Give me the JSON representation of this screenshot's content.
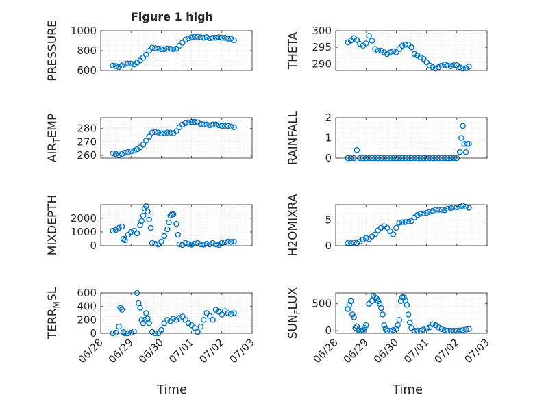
{
  "figure": {
    "title": "Figure 1 high",
    "marker_color": "#0072BD"
  },
  "x_axis": {
    "label": "Time",
    "range": [
      "06/28",
      "07/03"
    ],
    "tick_labels": [
      "06/28",
      "06/29",
      "06/30",
      "07/01",
      "07/02",
      "07/03"
    ]
  },
  "chart_data": [
    {
      "type": "scatter",
      "ylabel": "PRESSURE",
      "ylim": [
        600,
        1000
      ],
      "yticks": [
        600,
        800,
        1000
      ],
      "ytick_labels": [
        "600",
        "800",
        "1000"
      ],
      "grid": true,
      "x": [
        0.4,
        0.5,
        0.6,
        0.7,
        0.8,
        0.9,
        1.0,
        1.1,
        1.2,
        1.3,
        1.4,
        1.5,
        1.6,
        1.7,
        1.8,
        1.9,
        2.0,
        2.1,
        2.2,
        2.3,
        2.4,
        2.5,
        2.6,
        2.7,
        2.8,
        2.9,
        3.0,
        3.1,
        3.2,
        3.3,
        3.4,
        3.5,
        3.6,
        3.7,
        3.8,
        3.9,
        4.0,
        4.1,
        4.2,
        4.3,
        4.4
      ],
      "y": [
        650,
        645,
        635,
        650,
        665,
        670,
        670,
        660,
        680,
        700,
        730,
        760,
        800,
        830,
        825,
        820,
        815,
        815,
        820,
        820,
        815,
        820,
        850,
        880,
        910,
        925,
        935,
        940,
        940,
        935,
        930,
        935,
        925,
        930,
        930,
        935,
        930,
        930,
        920,
        920,
        905
      ]
    },
    {
      "type": "scatter",
      "ylabel": "THETA",
      "ylim": [
        288,
        300
      ],
      "yticks": [
        290,
        295,
        300
      ],
      "ytick_labels": [
        "290",
        "295",
        "300"
      ],
      "grid": true,
      "x": [
        0.4,
        0.5,
        0.6,
        0.7,
        0.8,
        0.9,
        1.0,
        1.1,
        1.2,
        1.3,
        1.4,
        1.5,
        1.6,
        1.7,
        1.8,
        1.9,
        2.0,
        2.1,
        2.2,
        2.3,
        2.4,
        2.5,
        2.6,
        2.7,
        2.8,
        2.9,
        3.0,
        3.1,
        3.2,
        3.3,
        3.4,
        3.5,
        3.6,
        3.7,
        3.8,
        3.9,
        4.0,
        4.1,
        4.2,
        4.3,
        4.4
      ],
      "y": [
        296.5,
        297.0,
        297.8,
        297.2,
        296.0,
        295.5,
        296.2,
        298.5,
        297.0,
        294.5,
        294.0,
        294.0,
        293.5,
        293.0,
        293.5,
        293.8,
        293.5,
        294.5,
        295.5,
        295.8,
        295.8,
        295.0,
        293.0,
        292.5,
        292.0,
        291.5,
        290.5,
        289.5,
        289.0,
        288.6,
        289.0,
        289.5,
        289.8,
        289.5,
        289.3,
        289.6,
        289.6,
        289.0,
        288.6,
        288.7,
        289.2
      ]
    },
    {
      "type": "scatter",
      "ylabel": "AIR_TEMP",
      "ylim": [
        258,
        288
      ],
      "yticks": [
        260,
        270,
        280
      ],
      "ytick_labels": [
        "260",
        "270",
        "280"
      ],
      "grid": true,
      "x": [
        0.4,
        0.5,
        0.6,
        0.7,
        0.8,
        0.9,
        1.0,
        1.1,
        1.2,
        1.3,
        1.4,
        1.5,
        1.6,
        1.7,
        1.8,
        1.9,
        2.0,
        2.1,
        2.2,
        2.3,
        2.4,
        2.5,
        2.6,
        2.7,
        2.8,
        2.9,
        3.0,
        3.1,
        3.2,
        3.3,
        3.4,
        3.5,
        3.6,
        3.7,
        3.8,
        3.9,
        4.0,
        4.1,
        4.2,
        4.3,
        4.4
      ],
      "y": [
        261.5,
        261.0,
        260.0,
        261.0,
        262.0,
        262.5,
        263.0,
        263.5,
        264.5,
        266.0,
        268.0,
        271.0,
        274.0,
        277.0,
        277.5,
        277.0,
        276.5,
        276.5,
        277.0,
        277.0,
        276.5,
        278.0,
        281.0,
        283.0,
        284.0,
        284.5,
        285.0,
        285.0,
        284.5,
        283.5,
        283.0,
        283.0,
        282.5,
        283.0,
        283.0,
        282.5,
        282.0,
        282.0,
        282.0,
        281.5,
        281.0
      ]
    },
    {
      "type": "scatter",
      "ylabel": "RAINFALL",
      "ylim": [
        0,
        2
      ],
      "yticks": [
        0,
        1,
        2
      ],
      "ytick_labels": [
        "0",
        "1",
        "2"
      ],
      "grid": true,
      "x": [
        0.4,
        0.5,
        0.6,
        0.7,
        0.8,
        0.9,
        1.0,
        1.1,
        1.2,
        1.3,
        1.4,
        1.5,
        1.6,
        1.7,
        1.8,
        1.9,
        2.0,
        2.1,
        2.2,
        2.3,
        2.4,
        2.5,
        2.6,
        2.7,
        2.8,
        2.9,
        3.0,
        3.1,
        3.2,
        3.3,
        3.4,
        3.5,
        3.6,
        3.7,
        3.8,
        3.9,
        4.0,
        4.1,
        4.15,
        4.2,
        4.25,
        4.3,
        4.35,
        4.4
      ],
      "y": [
        0,
        0,
        0,
        0.4,
        0,
        0,
        0,
        0,
        0,
        0,
        0,
        0,
        0,
        0,
        0,
        0,
        0,
        0,
        0,
        0,
        0,
        0,
        0,
        0,
        0,
        0,
        0,
        0,
        0,
        0,
        0,
        0,
        0,
        0,
        0,
        0,
        0,
        0.3,
        1.0,
        1.6,
        0.7,
        0.3,
        0.7,
        0.7
      ]
    },
    {
      "type": "scatter",
      "ylabel": "MIXDEPTH",
      "ylim": [
        0,
        3000
      ],
      "yticks": [
        0,
        1000,
        2000
      ],
      "ytick_labels": [
        "0",
        "1000",
        "2000"
      ],
      "grid": true,
      "x": [
        0.4,
        0.5,
        0.6,
        0.7,
        0.75,
        0.8,
        0.9,
        1.0,
        1.1,
        1.2,
        1.3,
        1.35,
        1.4,
        1.45,
        1.5,
        1.55,
        1.6,
        1.65,
        1.7,
        1.8,
        1.9,
        2.0,
        2.1,
        2.2,
        2.25,
        2.3,
        2.35,
        2.4,
        2.5,
        2.55,
        2.6,
        2.7,
        2.8,
        2.9,
        3.0,
        3.1,
        3.2,
        3.3,
        3.4,
        3.5,
        3.6,
        3.7,
        3.8,
        3.9,
        4.0,
        4.1,
        4.2,
        4.3,
        4.4
      ],
      "y": [
        1100,
        1150,
        1300,
        1400,
        500,
        400,
        800,
        1000,
        1100,
        900,
        1500,
        1800,
        2200,
        2700,
        2900,
        2500,
        1900,
        1300,
        200,
        150,
        100,
        300,
        700,
        1200,
        1700,
        2200,
        2300,
        2300,
        1600,
        800,
        100,
        50,
        200,
        120,
        80,
        150,
        200,
        100,
        80,
        150,
        100,
        200,
        100,
        50,
        200,
        250,
        300,
        280,
        300
      ]
    },
    {
      "type": "scatter",
      "ylabel": "H2OMIXRA",
      "ylim": [
        0,
        8
      ],
      "yticks": [
        0,
        5
      ],
      "ytick_labels": [
        "0",
        "5"
      ],
      "grid": true,
      "x": [
        0.4,
        0.5,
        0.6,
        0.7,
        0.8,
        0.9,
        1.0,
        1.1,
        1.2,
        1.3,
        1.4,
        1.5,
        1.6,
        1.7,
        1.8,
        1.9,
        2.0,
        2.1,
        2.2,
        2.3,
        2.4,
        2.5,
        2.6,
        2.7,
        2.8,
        2.9,
        3.0,
        3.1,
        3.2,
        3.3,
        3.4,
        3.5,
        3.6,
        3.7,
        3.8,
        3.9,
        4.0,
        4.1,
        4.2,
        4.3,
        4.4
      ],
      "y": [
        0.5,
        0.5,
        0.6,
        0.5,
        0.8,
        1.2,
        1.5,
        1.3,
        1.8,
        2.2,
        3.0,
        3.5,
        3.8,
        3.5,
        2.8,
        2.2,
        3.5,
        4.5,
        4.6,
        4.6,
        4.7,
        4.8,
        5.5,
        6.0,
        6.2,
        6.3,
        6.4,
        6.6,
        6.8,
        7.0,
        7.0,
        7.0,
        6.9,
        7.2,
        7.3,
        7.5,
        7.5,
        7.6,
        7.8,
        7.6,
        7.4
      ]
    },
    {
      "type": "scatter",
      "ylabel": "TERR_MSL",
      "ylim": [
        0,
        600
      ],
      "yticks": [
        0,
        200,
        400,
        600
      ],
      "ytick_labels": [
        "0",
        "200",
        "400",
        "600"
      ],
      "grid": true,
      "x": [
        0.4,
        0.5,
        0.6,
        0.65,
        0.7,
        0.75,
        0.8,
        0.9,
        1.0,
        1.1,
        1.2,
        1.25,
        1.3,
        1.35,
        1.4,
        1.45,
        1.5,
        1.55,
        1.6,
        1.7,
        1.8,
        1.9,
        2.0,
        2.1,
        2.2,
        2.3,
        2.4,
        2.5,
        2.6,
        2.7,
        2.8,
        2.9,
        3.0,
        3.1,
        3.2,
        3.3,
        3.4,
        3.5,
        3.6,
        3.7,
        3.8,
        3.9,
        4.0,
        4.1,
        4.2,
        4.3,
        4.4
      ],
      "y": [
        0,
        10,
        100,
        380,
        350,
        20,
        0,
        0,
        10,
        30,
        600,
        450,
        380,
        200,
        150,
        200,
        300,
        220,
        150,
        20,
        0,
        0,
        50,
        150,
        200,
        180,
        220,
        200,
        230,
        250,
        200,
        150,
        120,
        80,
        20,
        100,
        200,
        300,
        260,
        200,
        350,
        320,
        280,
        330,
        300,
        290,
        300
      ]
    },
    {
      "type": "scatter",
      "ylabel": "SUN_FLUX",
      "ylim": [
        -50,
        700
      ],
      "yticks": [
        0,
        500
      ],
      "ytick_labels": [
        "0",
        "500"
      ],
      "grid": true,
      "x": [
        0.4,
        0.45,
        0.5,
        0.55,
        0.6,
        0.65,
        0.7,
        0.75,
        0.8,
        0.85,
        0.9,
        0.95,
        1.0,
        1.1,
        1.2,
        1.25,
        1.3,
        1.35,
        1.4,
        1.45,
        1.5,
        1.55,
        1.6,
        1.65,
        1.7,
        1.8,
        1.9,
        2.0,
        2.05,
        2.1,
        2.15,
        2.2,
        2.25,
        2.3,
        2.35,
        2.4,
        2.45,
        2.5,
        2.6,
        2.7,
        2.8,
        2.9,
        3.0,
        3.1,
        3.2,
        3.3,
        3.4,
        3.5,
        3.6,
        3.7,
        3.8,
        3.9,
        4.0,
        4.1,
        4.2,
        4.3,
        4.4
      ],
      "y": [
        400,
        480,
        550,
        300,
        250,
        50,
        80,
        10,
        0,
        0,
        10,
        50,
        100,
        500,
        550,
        650,
        620,
        600,
        550,
        500,
        420,
        300,
        100,
        30,
        0,
        0,
        10,
        30,
        100,
        200,
        550,
        620,
        620,
        560,
        480,
        300,
        150,
        50,
        0,
        0,
        0,
        20,
        40,
        60,
        120,
        100,
        60,
        30,
        10,
        0,
        0,
        0,
        0,
        5,
        10,
        20,
        30
      ]
    }
  ]
}
